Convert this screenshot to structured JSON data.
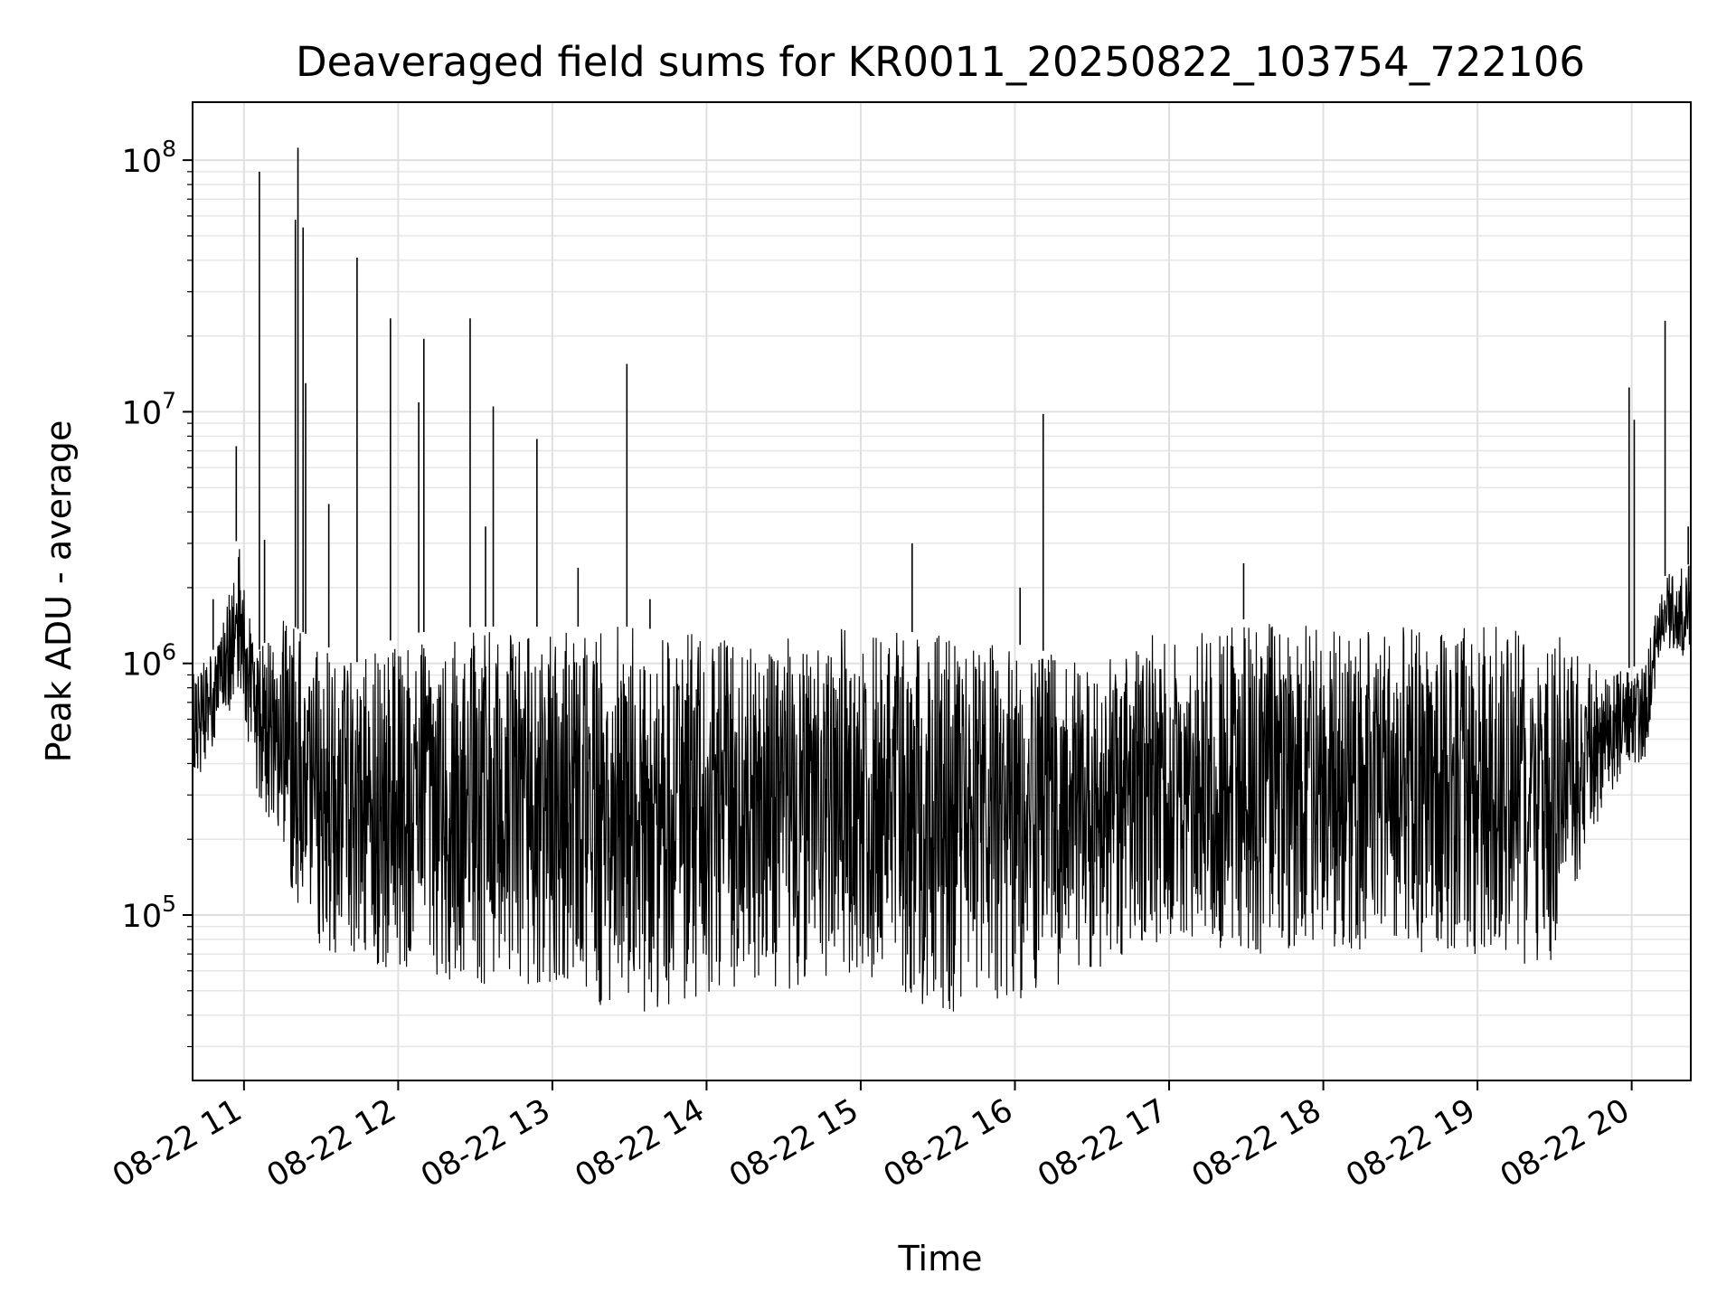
{
  "chart_data": {
    "type": "line",
    "title": "Deaveraged field sums for KR0011_20250822_103754_722106",
    "xlabel": "Time",
    "ylabel": "Peak ADU - average",
    "yscale": "log",
    "grid": true,
    "line_color": "#000000",
    "x_range": [
      "2025-08-22T10:40",
      "2025-08-22T20:23"
    ],
    "y_range": [
      22000,
      170000000
    ],
    "x_ticks": [
      {
        "label": "08-22 11",
        "time": "2025-08-22T11:00"
      },
      {
        "label": "08-22 12",
        "time": "2025-08-22T12:00"
      },
      {
        "label": "08-22 13",
        "time": "2025-08-22T13:00"
      },
      {
        "label": "08-22 14",
        "time": "2025-08-22T14:00"
      },
      {
        "label": "08-22 15",
        "time": "2025-08-22T15:00"
      },
      {
        "label": "08-22 16",
        "time": "2025-08-22T16:00"
      },
      {
        "label": "08-22 17",
        "time": "2025-08-22T17:00"
      },
      {
        "label": "08-22 18",
        "time": "2025-08-22T18:00"
      },
      {
        "label": "08-22 19",
        "time": "2025-08-22T19:00"
      },
      {
        "label": "08-22 20",
        "time": "2025-08-22T20:00"
      }
    ],
    "y_ticks": [
      {
        "base": "10",
        "exp": "5",
        "value": 100000
      },
      {
        "base": "10",
        "exp": "6",
        "value": 1000000
      },
      {
        "base": "10",
        "exp": "7",
        "value": 10000000
      },
      {
        "base": "10",
        "exp": "8",
        "value": 100000000
      }
    ],
    "series": [
      {
        "values": [
          {
            "time": "2025-08-22T10:40",
            "low": 300000,
            "high": 900000
          },
          {
            "time": "2025-08-22T10:50",
            "low": 500000,
            "high": 1200000
          },
          {
            "time": "2025-08-22T10:58",
            "low": 800000,
            "high": 3500000
          },
          {
            "time": "2025-08-22T11:05",
            "low": 300000,
            "high": 1100000
          },
          {
            "time": "2025-08-22T11:15",
            "low": 150000,
            "high": 1500000
          },
          {
            "time": "2025-08-22T11:30",
            "low": 70000,
            "high": 1200000
          },
          {
            "time": "2025-08-22T11:45",
            "low": 60000,
            "high": 1000000
          },
          {
            "time": "2025-08-22T12:00",
            "low": 60000,
            "high": 1300000
          },
          {
            "time": "2025-08-22T12:30",
            "low": 50000,
            "high": 1400000
          },
          {
            "time": "2025-08-22T13:00",
            "low": 50000,
            "high": 1400000
          },
          {
            "time": "2025-08-22T13:30",
            "low": 40000,
            "high": 1400000
          },
          {
            "time": "2025-08-22T14:00",
            "low": 45000,
            "high": 1300000
          },
          {
            "time": "2025-08-22T14:30",
            "low": 50000,
            "high": 1300000
          },
          {
            "time": "2025-08-22T15:00",
            "low": 60000,
            "high": 1400000
          },
          {
            "time": "2025-08-22T15:30",
            "low": 40000,
            "high": 1300000
          },
          {
            "time": "2025-08-22T16:00",
            "low": 45000,
            "high": 1200000
          },
          {
            "time": "2025-08-22T16:30",
            "low": 60000,
            "high": 1000000
          },
          {
            "time": "2025-08-22T17:00",
            "low": 80000,
            "high": 1400000
          },
          {
            "time": "2025-08-22T17:30",
            "low": 70000,
            "high": 1500000
          },
          {
            "time": "2025-08-22T18:00",
            "low": 70000,
            "high": 1400000
          },
          {
            "time": "2025-08-22T18:30",
            "low": 70000,
            "high": 1400000
          },
          {
            "time": "2025-08-22T19:00",
            "low": 70000,
            "high": 1400000
          },
          {
            "time": "2025-08-22T19:30",
            "low": 60000,
            "high": 1400000
          },
          {
            "time": "2025-08-22T19:50",
            "low": 300000,
            "high": 900000
          },
          {
            "time": "2025-08-22T20:05",
            "low": 400000,
            "high": 1000000
          },
          {
            "time": "2025-08-22T20:12",
            "low": 1200000,
            "high": 2200000
          },
          {
            "time": "2025-08-22T20:23",
            "low": 1000000,
            "high": 2500000
          }
        ],
        "spikes": [
          {
            "time": "2025-08-22T10:48",
            "value": 1800000
          },
          {
            "time": "2025-08-22T10:57",
            "value": 7300000
          },
          {
            "time": "2025-08-22T11:06",
            "value": 90000000
          },
          {
            "time": "2025-08-22T11:08",
            "value": 3100000
          },
          {
            "time": "2025-08-22T11:20",
            "value": 58000000
          },
          {
            "time": "2025-08-22T11:21",
            "value": 112000000
          },
          {
            "time": "2025-08-22T11:23",
            "value": 54000000
          },
          {
            "time": "2025-08-22T11:24",
            "value": 13000000
          },
          {
            "time": "2025-08-22T11:33",
            "value": 4300000
          },
          {
            "time": "2025-08-22T11:44",
            "value": 41000000
          },
          {
            "time": "2025-08-22T11:57",
            "value": 23500000
          },
          {
            "time": "2025-08-22T12:08",
            "value": 10900000
          },
          {
            "time": "2025-08-22T12:10",
            "value": 19500000
          },
          {
            "time": "2025-08-22T12:28",
            "value": 23500000
          },
          {
            "time": "2025-08-22T12:34",
            "value": 3500000
          },
          {
            "time": "2025-08-22T12:37",
            "value": 10500000
          },
          {
            "time": "2025-08-22T12:54",
            "value": 7800000
          },
          {
            "time": "2025-08-22T13:10",
            "value": 2400000
          },
          {
            "time": "2025-08-22T13:29",
            "value": 15500000
          },
          {
            "time": "2025-08-22T13:38",
            "value": 1800000
          },
          {
            "time": "2025-08-22T15:20",
            "value": 3000000
          },
          {
            "time": "2025-08-22T16:02",
            "value": 2000000
          },
          {
            "time": "2025-08-22T16:11",
            "value": 9800000
          },
          {
            "time": "2025-08-22T17:29",
            "value": 2500000
          },
          {
            "time": "2025-08-22T19:59",
            "value": 12500000
          },
          {
            "time": "2025-08-22T20:01",
            "value": 9300000
          },
          {
            "time": "2025-08-22T20:13",
            "value": 23000000
          },
          {
            "time": "2025-08-22T20:22",
            "value": 3500000
          }
        ]
      }
    ]
  }
}
